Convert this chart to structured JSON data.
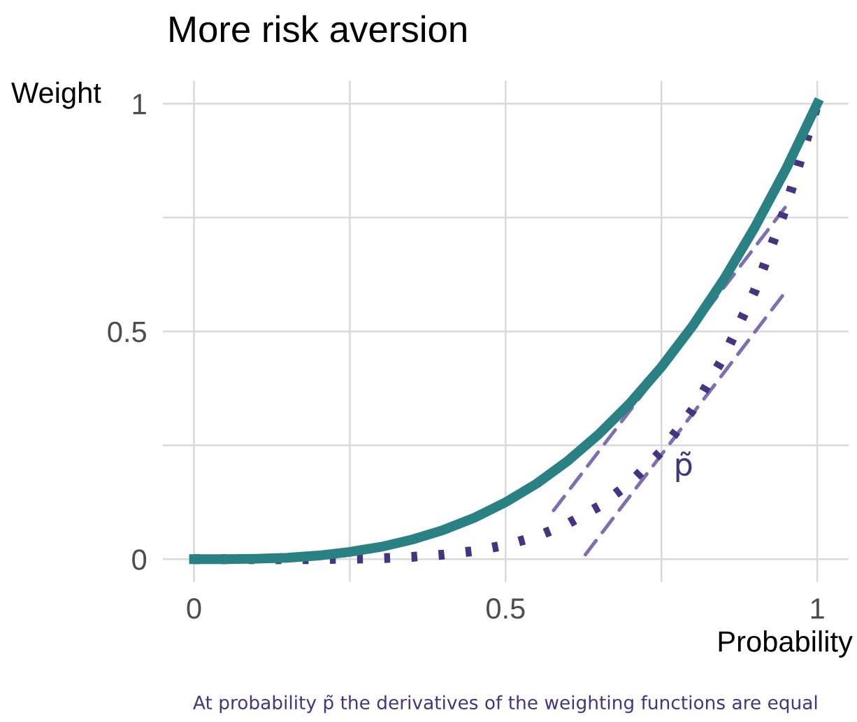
{
  "chart_data": {
    "type": "line",
    "title": "More risk aversion",
    "xlabel": "Probability",
    "ylabel": "Weight",
    "x": [
      0,
      0.05,
      0.1,
      0.15,
      0.2,
      0.25,
      0.3,
      0.35,
      0.4,
      0.45,
      0.5,
      0.55,
      0.6,
      0.65,
      0.7,
      0.75,
      0.8,
      0.85,
      0.9,
      0.95,
      1
    ],
    "series": [
      {
        "color": "#2a8184",
        "line_style": "solid",
        "values": [
          0,
          0,
          0.001,
          0.003,
          0.008,
          0.016,
          0.027,
          0.043,
          0.064,
          0.091,
          0.125,
          0.166,
          0.216,
          0.275,
          0.343,
          0.422,
          0.512,
          0.614,
          0.729,
          0.857,
          1
        ]
      },
      {
        "color": "#433580",
        "line_style": "dotted",
        "values": [
          0,
          0,
          0,
          0,
          0,
          0.001,
          0.002,
          0.005,
          0.01,
          0.018,
          0.031,
          0.05,
          0.078,
          0.116,
          0.168,
          0.237,
          0.328,
          0.444,
          0.59,
          0.774,
          1
        ]
      },
      {
        "color": "#7e6fb0",
        "line_style": "dashed",
        "x": [
          0.577,
          0.954
        ],
        "values": [
          0.107,
          0.782
        ]
      },
      {
        "color": "#7e6fb0",
        "line_style": "dashed",
        "x": [
          0.628,
          0.944
        ],
        "values": [
          0.01,
          0.578
        ]
      }
    ],
    "xlim": [
      -0.05,
      1.05
    ],
    "ylim": [
      -0.05,
      1.05
    ],
    "xticks": [
      0,
      {
        "value": 0.25,
        "label": null
      },
      0.5,
      {
        "value": 0.75,
        "label": null
      },
      1
    ],
    "yticks": [
      0,
      {
        "value": 0.25,
        "label": null
      },
      0.5,
      {
        "value": 0.75,
        "label": null
      },
      1
    ],
    "grid": true,
    "legend": false,
    "marker": "none",
    "annotations": [
      "p̃",
      "At probability p̃ the derivatives of the weighting functions are equal"
    ]
  }
}
